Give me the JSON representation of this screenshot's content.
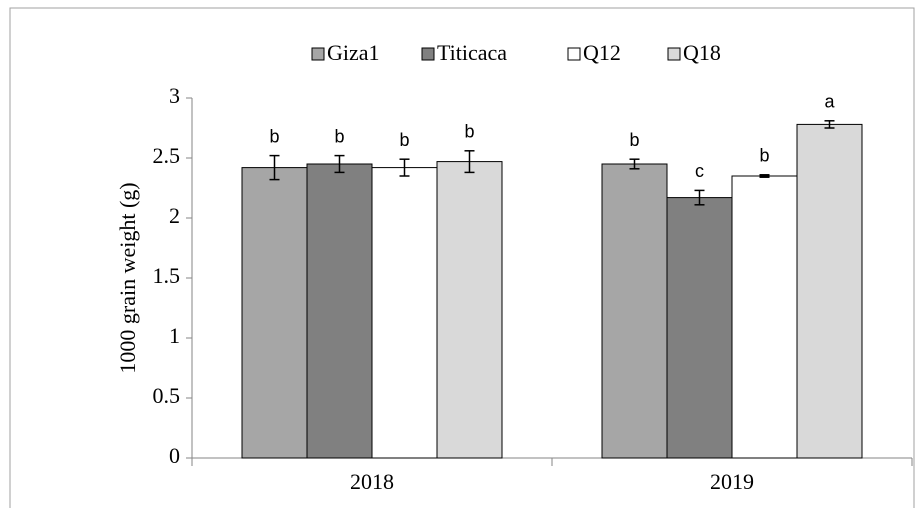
{
  "chart_data": {
    "type": "bar",
    "ylabel": "1000 grain weight (g)",
    "categories": [
      "2018",
      "2019"
    ],
    "series": [
      {
        "name": "Giza1",
        "color": "#a6a6a6",
        "values": [
          2.42,
          2.45
        ],
        "errors": [
          0.1,
          0.04
        ],
        "letters": [
          "b",
          "b"
        ]
      },
      {
        "name": "Titicaca",
        "color": "#808080",
        "values": [
          2.45,
          2.17
        ],
        "errors": [
          0.07,
          0.06
        ],
        "letters": [
          "b",
          "c"
        ]
      },
      {
        "name": "Q12",
        "color": "#ffffff",
        "values": [
          2.42,
          2.35
        ],
        "errors": [
          0.07,
          0.01
        ],
        "letters": [
          "b",
          "b"
        ]
      },
      {
        "name": "Q18",
        "color": "#d9d9d9",
        "values": [
          2.47,
          2.78
        ],
        "errors": [
          0.09,
          0.03
        ],
        "letters": [
          "b",
          "a"
        ]
      }
    ],
    "ylim": [
      0,
      3
    ],
    "yticks": [
      0,
      0.5,
      1,
      1.5,
      2,
      2.5,
      3
    ],
    "grid": false,
    "legend": "top"
  }
}
